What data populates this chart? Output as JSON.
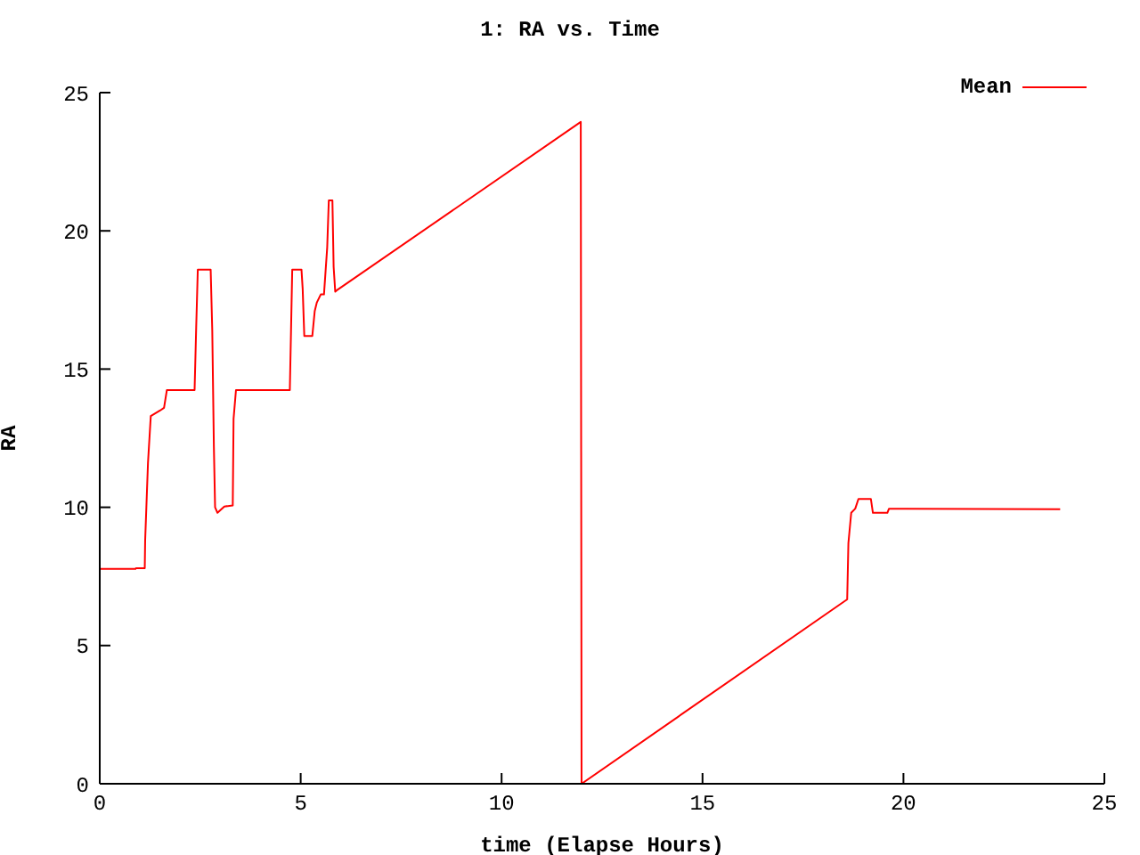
{
  "chart_data": {
    "type": "line",
    "title": "1: RA vs. Time",
    "xlabel": "time (Elapse Hours)",
    "ylabel": "RA",
    "xlim": [
      0,
      25
    ],
    "xticks": [
      0,
      5,
      10,
      15,
      20,
      25
    ],
    "ylim": [
      0,
      25
    ],
    "yticks": [
      0,
      5,
      10,
      15,
      20,
      25
    ],
    "grid": false,
    "legend": "top right",
    "marker": "none",
    "line_style": "solid",
    "series": [
      {
        "name": "Mean",
        "color": "#ff0000",
        "x": [
          0,
          0.89,
          0.9,
          1.12,
          1.13,
          1.2,
          1.27,
          1.5,
          1.6,
          1.67,
          2.36,
          2.4,
          2.44,
          2.76,
          2.8,
          2.84,
          2.87,
          2.93,
          3.1,
          3.31,
          3.33,
          3.39,
          4.73,
          4.76,
          4.79,
          5.02,
          5.05,
          5.09,
          5.29,
          5.35,
          5.4,
          5.5,
          5.58,
          5.66,
          5.7,
          5.79,
          5.82,
          5.86,
          5.9,
          11.97,
          11.98,
          11.99,
          18.6,
          18.63,
          18.7,
          18.8,
          18.88,
          19.19,
          19.24,
          19.6,
          19.64,
          23.9
        ],
        "values": [
          7.77,
          7.77,
          7.8,
          7.8,
          8.8,
          11.6,
          13.3,
          13.5,
          13.6,
          14.24,
          14.24,
          16.5,
          18.6,
          18.6,
          16.4,
          12.2,
          10,
          9.8,
          10.03,
          10.07,
          13.2,
          14.24,
          14.24,
          16.4,
          18.6,
          18.6,
          17.9,
          16.2,
          16.2,
          17.1,
          17.4,
          17.7,
          17.7,
          19.4,
          21.1,
          21.1,
          18.7,
          17.8,
          17.85,
          23.94,
          12,
          0,
          6.67,
          8.7,
          9.8,
          9.95,
          10.3,
          10.3,
          9.8,
          9.8,
          9.95,
          9.93
        ]
      }
    ]
  }
}
